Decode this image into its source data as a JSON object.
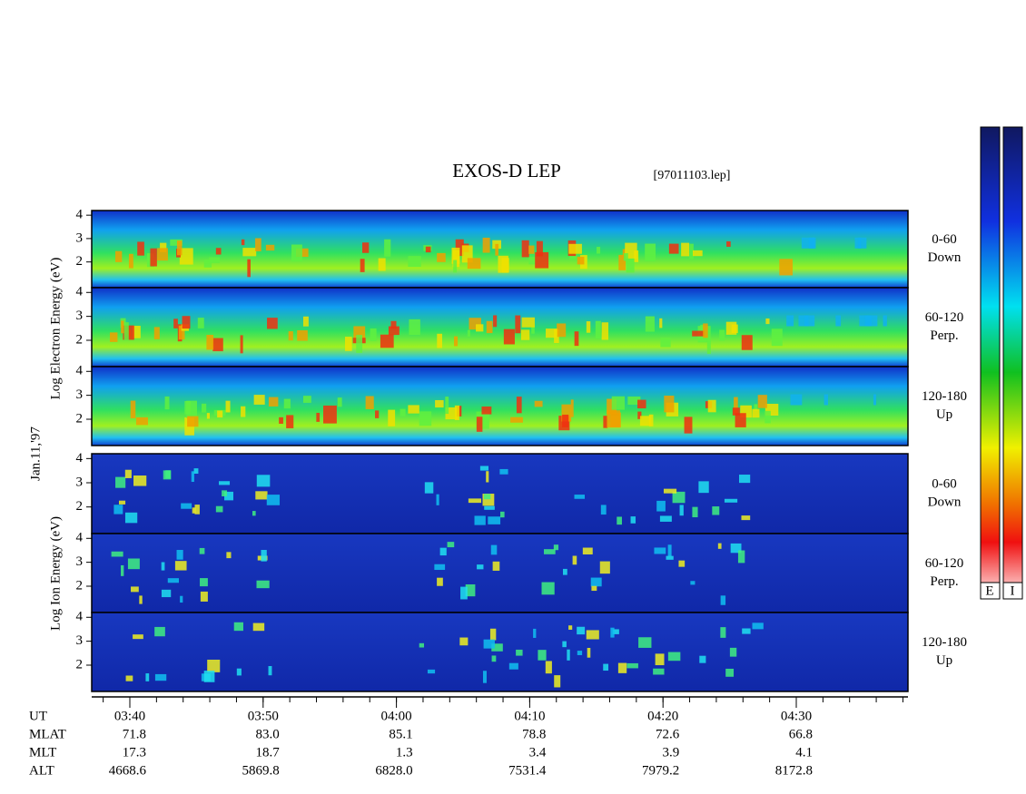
{
  "header": {
    "title": "EXOS-D LEP",
    "file": "[97011103.lep]",
    "date": "Jan.11,'97"
  },
  "energy_axis": {
    "ylim": [
      0.9,
      4.2
    ],
    "yticks": [
      2,
      3,
      4
    ]
  },
  "electron": {
    "label": "Log Electron Energy (eV)",
    "panels": [
      {
        "range": "0-60",
        "direction": "Down"
      },
      {
        "range": "60-120",
        "direction": "Perp."
      },
      {
        "range": "120-180",
        "direction": "Up"
      }
    ]
  },
  "ion": {
    "label": "Log Ion Energy (eV)",
    "panels": [
      {
        "range": "0-60",
        "direction": "Down"
      },
      {
        "range": "60-120",
        "direction": "Perp."
      },
      {
        "range": "120-180",
        "direction": "Up"
      }
    ]
  },
  "time_axis": {
    "ticks": [
      "03:40",
      "03:50",
      "04:00",
      "04:10",
      "04:20",
      "04:30"
    ]
  },
  "ephemeris": {
    "ut_label": "UT",
    "rows": [
      {
        "name": "MLAT",
        "values": [
          "71.8",
          "83.0",
          "85.1",
          "78.8",
          "72.6",
          "66.8"
        ]
      },
      {
        "name": "MLT",
        "values": [
          "17.3",
          "18.7",
          "1.3",
          "3.4",
          "3.9",
          "4.1"
        ]
      },
      {
        "name": "ALT",
        "values": [
          "4668.6",
          "5869.8",
          "6828.0",
          "7531.4",
          "7979.2",
          "8172.8"
        ]
      }
    ]
  },
  "colorbar": {
    "labels": [
      "E",
      "I"
    ]
  }
}
